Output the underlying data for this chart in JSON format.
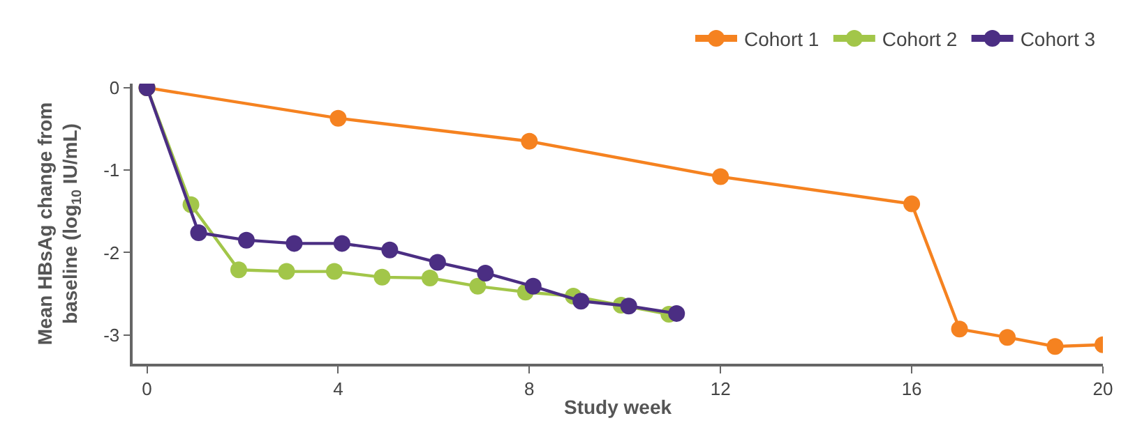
{
  "chart_data": {
    "type": "line",
    "xlabel": "Study week",
    "ylabel": "Mean HBsAg change from\nbaseline (log$_{10}$ IU/mL)",
    "xlim": [
      -0.3,
      20
    ],
    "ylim": [
      -3.35,
      0.05
    ],
    "xticks": [
      0,
      4,
      8,
      12,
      16,
      20
    ],
    "yticks": [
      0,
      -1,
      -2,
      -3
    ],
    "legend": "top right",
    "marker": "circle",
    "line_style": "solid",
    "series": [
      {
        "name": "Cohort 1",
        "color": "#f58220",
        "x": [
          0,
          4,
          8,
          12,
          16,
          17,
          18,
          19,
          20
        ],
        "values": [
          0,
          -0.37,
          -0.65,
          -1.08,
          -1.41,
          -2.93,
          -3.03,
          -3.14,
          -3.12
        ]
      },
      {
        "name": "Cohort 2",
        "color": "#a2c649",
        "x": [
          0,
          0.92,
          1.92,
          2.92,
          3.92,
          4.92,
          5.92,
          6.92,
          7.92,
          8.92,
          9.92,
          10.92
        ],
        "values": [
          0,
          -1.42,
          -2.21,
          -2.23,
          -2.23,
          -2.3,
          -2.31,
          -2.41,
          -2.48,
          -2.53,
          -2.64,
          -2.75
        ]
      },
      {
        "name": "Cohort 3",
        "color": "#4b2e83",
        "x": [
          0,
          1.08,
          2.08,
          3.08,
          4.08,
          5.08,
          6.08,
          7.08,
          8.08,
          9.08,
          10.08,
          11.08
        ],
        "values": [
          0,
          -1.76,
          -1.85,
          -1.89,
          -1.89,
          -1.97,
          -2.12,
          -2.25,
          -2.41,
          -2.59,
          -2.65,
          -2.74
        ]
      }
    ]
  }
}
